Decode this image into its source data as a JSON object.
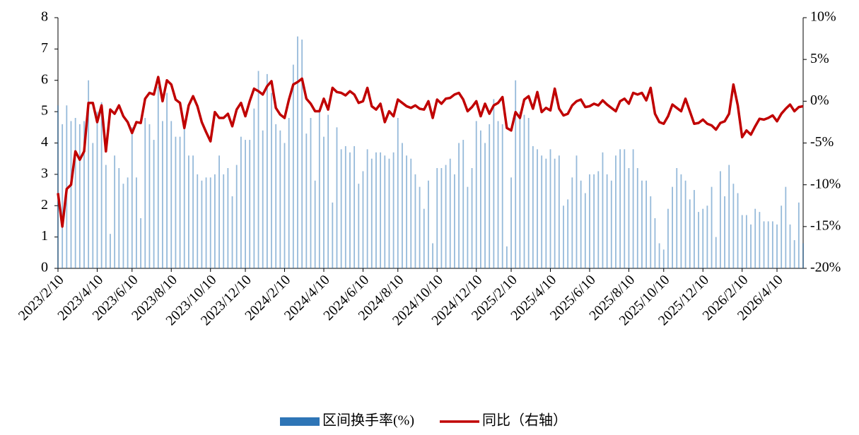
{
  "chart_data": {
    "type": "bar-line",
    "categories": [
      "2023/2/10",
      null,
      null,
      null,
      null,
      null,
      null,
      null,
      null,
      "2023/4/10",
      null,
      null,
      null,
      null,
      null,
      null,
      null,
      "2023/6/10",
      null,
      null,
      null,
      null,
      null,
      null,
      null,
      null,
      "2023/8/10",
      null,
      null,
      null,
      null,
      null,
      null,
      null,
      null,
      "2023/10/10",
      null,
      null,
      null,
      null,
      null,
      null,
      null,
      "2023/12/10",
      null,
      null,
      null,
      null,
      null,
      null,
      null,
      null,
      "2024/2/10",
      null,
      null,
      null,
      null,
      null,
      null,
      null,
      null,
      "2024/4/10",
      null,
      null,
      null,
      null,
      null,
      null,
      null,
      null,
      "2024/6/10",
      null,
      null,
      null,
      null,
      null,
      null,
      null,
      "2024/8/10",
      null,
      null,
      null,
      null,
      null,
      null,
      null,
      null,
      "2024/10/10",
      null,
      null,
      null,
      null,
      null,
      null,
      null,
      null,
      "2024/12/10",
      null,
      null,
      null,
      null,
      null,
      null,
      null,
      "2025/2/10",
      null,
      null,
      null,
      null,
      null,
      null,
      null,
      null,
      "2025/4/10",
      null,
      null,
      null,
      null,
      null,
      null,
      null,
      null,
      "2025/6/10",
      null,
      null,
      null,
      null,
      null,
      null,
      null,
      null,
      "2025/8/10",
      null,
      null,
      null,
      null,
      null,
      null,
      null,
      "2025/10/10",
      null,
      null,
      null,
      null,
      null,
      null,
      null,
      null,
      "2025/12/10",
      null,
      null,
      null,
      null,
      null,
      null,
      null,
      null,
      "2026/2/10",
      null,
      null,
      null,
      null,
      null,
      null,
      null,
      "2026/4/10",
      null,
      null,
      null,
      null,
      null,
      null
    ],
    "series": [
      {
        "name": "区间换手率(%)",
        "color": "#2E75B6",
        "axis": "y",
        "values": [
          5.2,
          4.6,
          5.2,
          4.7,
          4.8,
          4.6,
          4.7,
          6.0,
          4.0,
          5.0,
          5.3,
          3.3,
          1.1,
          3.6,
          3.2,
          2.7,
          2.9,
          4.5,
          2.9,
          1.6,
          4.8,
          4.6,
          4.1,
          5.8,
          4.7,
          5.6,
          4.7,
          4.2,
          4.2,
          4.5,
          3.6,
          3.6,
          3.0,
          2.8,
          2.9,
          2.9,
          3.0,
          3.6,
          3.0,
          3.2,
          2.3,
          3.3,
          4.2,
          4.1,
          4.1,
          5.1,
          6.3,
          4.4,
          6.2,
          5.6,
          4.6,
          4.4,
          4.0,
          4.8,
          6.5,
          7.4,
          7.3,
          4.3,
          4.8,
          2.8,
          5.0,
          4.2,
          4.9,
          2.1,
          4.5,
          3.8,
          3.9,
          3.7,
          3.9,
          2.7,
          3.1,
          3.8,
          3.5,
          3.7,
          3.7,
          3.6,
          3.5,
          3.7,
          4.8,
          4.0,
          3.6,
          3.5,
          3.0,
          2.6,
          1.9,
          2.8,
          0.8,
          3.2,
          3.2,
          3.3,
          3.5,
          3.0,
          4.0,
          4.1,
          2.6,
          3.2,
          4.7,
          4.4,
          4.0,
          4.6,
          5.4,
          4.7,
          4.6,
          0.7,
          2.9,
          6.0,
          5.0,
          4.9,
          4.8,
          3.9,
          3.8,
          3.6,
          3.5,
          3.8,
          3.5,
          3.6,
          2.0,
          2.2,
          2.9,
          3.6,
          2.8,
          2.4,
          3.0,
          3.0,
          3.1,
          3.7,
          3.0,
          2.8,
          3.6,
          3.8,
          3.8,
          3.2,
          3.8,
          3.2,
          2.8,
          2.8,
          2.3,
          1.6,
          0.8,
          0.6,
          1.9,
          2.6,
          3.2,
          3.0,
          2.8,
          2.2,
          2.5,
          1.8,
          1.9,
          2.0,
          2.6,
          1.0,
          3.1,
          2.3,
          3.3,
          2.7,
          2.4,
          1.7,
          1.7,
          1.4,
          1.9,
          1.8,
          1.5,
          1.5,
          1.5,
          1.4,
          2.0,
          2.6,
          1.4,
          0.9,
          2.1,
          0.8
        ]
      },
      {
        "name": "同比（右轴）",
        "color": "#C00000",
        "axis": "y2",
        "values": [
          -11,
          -15,
          -10.5,
          -10,
          -6,
          -7,
          -6,
          -0.2,
          -0.2,
          -2.5,
          -0.5,
          -6,
          -1,
          -1.5,
          -0.5,
          -1.8,
          -2.5,
          -3.8,
          -2.5,
          -2.6,
          0.3,
          1,
          0.8,
          2.9,
          0,
          2.5,
          2,
          0.2,
          -0.2,
          -3.2,
          -0.5,
          0.6,
          -0.6,
          -2.5,
          -3.7,
          -4.8,
          -1.3,
          -2,
          -2,
          -1.5,
          -3,
          -1,
          -0.2,
          -1.8,
          0,
          1.5,
          1.2,
          0.8,
          1.8,
          2.4,
          -0.8,
          -1.6,
          -2,
          0.2,
          2,
          2.3,
          2.7,
          0.3,
          -0.3,
          -1.2,
          -1.2,
          0.3,
          -1,
          1.6,
          1.1,
          1,
          0.7,
          1.2,
          0.8,
          -0.2,
          0,
          1.6,
          -0.6,
          -1,
          -0.3,
          -2.5,
          -1.2,
          -1.8,
          0.2,
          -0.2,
          -0.6,
          -0.8,
          -0.5,
          -0.9,
          -1,
          0,
          -2,
          0.2,
          -0.3,
          0.3,
          0.4,
          0.8,
          1,
          0.2,
          -1.2,
          -0.7,
          0,
          -1.8,
          -0.3,
          -1.5,
          -0.5,
          -0.2,
          0.5,
          -3.2,
          -3.5,
          -1.3,
          -2,
          0.2,
          0.6,
          -0.9,
          1.1,
          -1.3,
          -0.8,
          -1.1,
          1.5,
          -0.9,
          -1.7,
          -1.5,
          -0.5,
          0,
          0.2,
          -0.7,
          -0.6,
          -0.3,
          -0.5,
          0.1,
          -0.4,
          -0.8,
          -1.2,
          0,
          0.3,
          -0.3,
          1,
          0.8,
          1,
          0.1,
          1.6,
          -1.5,
          -2.5,
          -2.7,
          -1.8,
          -0.4,
          -0.8,
          -1.2,
          0.3,
          -1.2,
          -2.7,
          -2.6,
          -2.2,
          -2.7,
          -2.9,
          -3.4,
          -2.6,
          -2.4,
          -1.5,
          2,
          -0.5,
          -4.3,
          -3.5,
          -4,
          -3,
          -2.1,
          -2.2,
          -2,
          -1.7,
          -2.4,
          -1.5,
          -0.9,
          -0.4,
          -1.2,
          -0.7,
          -0.6
        ]
      }
    ],
    "ylim": [
      0,
      8
    ],
    "yticks": [
      0,
      1,
      2,
      3,
      4,
      5,
      6,
      7,
      8
    ],
    "y2lim": [
      -20,
      10
    ],
    "y2ticks": [
      {
        "value": -20,
        "label": "-20%"
      },
      {
        "value": -15,
        "label": "-15%"
      },
      {
        "value": -10,
        "label": "-10%"
      },
      {
        "value": -5,
        "label": "-5%"
      },
      {
        "value": 0,
        "label": "0%"
      },
      {
        "value": 5,
        "label": "5%"
      },
      {
        "value": 10,
        "label": "10%"
      }
    ],
    "legend": "bottom"
  }
}
